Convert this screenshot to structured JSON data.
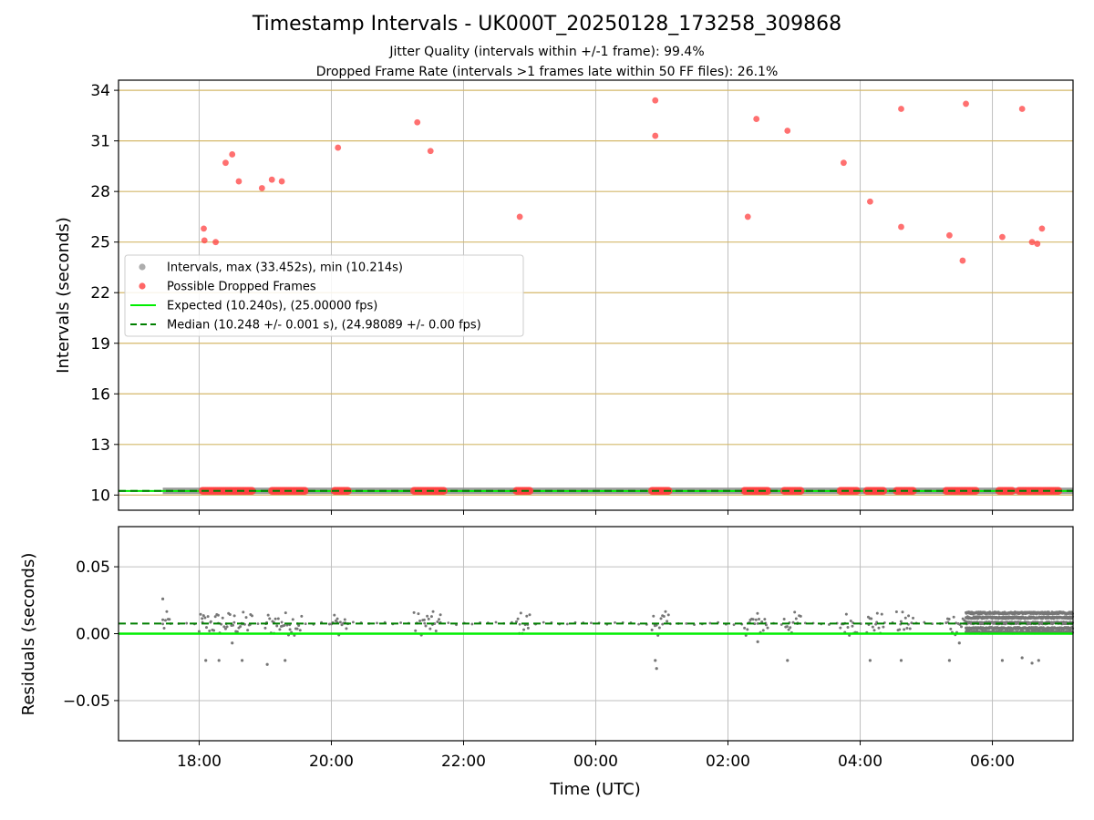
{
  "chart_data": [
    {
      "type": "scatter",
      "title": "Timestamp Intervals - UK000T_20250128_173258_309868",
      "subtitle_lines": [
        "Jitter Quality (intervals within +/-1 frame): 99.4%",
        "Dropped Frame Rate (intervals >1 frames late within 50 FF files): 26.1%"
      ],
      "xlabel": "",
      "ylabel": "Intervals (seconds)",
      "xlim_hours": [
        -7.22,
        7.22
      ],
      "ylim": [
        9.1,
        34.6
      ],
      "yticks": [
        10,
        13,
        16,
        19,
        22,
        25,
        28,
        31,
        34
      ],
      "xtick_hours": [
        -6,
        -4,
        -2,
        0,
        2,
        4,
        6
      ],
      "xtick_labels": [
        "18:00",
        "20:00",
        "22:00",
        "00:00",
        "02:00",
        "04:00",
        "06:00"
      ],
      "grid": true,
      "legend_position": "center-left",
      "legend": [
        {
          "label": "Intervals, max (33.452s), min (10.214s)",
          "kind": "marker",
          "color": "#999999"
        },
        {
          "label": "Possible Dropped Frames",
          "kind": "marker",
          "color": "#ff4040"
        },
        {
          "label": "Expected (10.240s), (25.00000 fps)",
          "kind": "line",
          "color": "#00ee00"
        },
        {
          "label": "Median (10.248 +/- 0.001 s), (24.98089 +/- 0.00 fps)",
          "kind": "dashed",
          "color": "#007f00"
        }
      ],
      "series": [
        {
          "name": "Possible Dropped Frames",
          "color": "#ff4040",
          "points": [
            [
              -5.93,
              25.8
            ],
            [
              -5.92,
              25.1
            ],
            [
              -5.75,
              25.0
            ],
            [
              -5.6,
              29.7
            ],
            [
              -5.5,
              30.2
            ],
            [
              -5.4,
              28.6
            ],
            [
              -5.05,
              28.2
            ],
            [
              -4.9,
              28.7
            ],
            [
              -4.75,
              28.6
            ],
            [
              -3.9,
              30.6
            ],
            [
              -2.7,
              32.1
            ],
            [
              -2.5,
              30.4
            ],
            [
              -1.15,
              26.5
            ],
            [
              0.9,
              33.4
            ],
            [
              0.9,
              31.3
            ],
            [
              2.3,
              26.5
            ],
            [
              2.43,
              32.3
            ],
            [
              2.9,
              31.6
            ],
            [
              3.75,
              29.7
            ],
            [
              4.15,
              27.4
            ],
            [
              4.62,
              32.9
            ],
            [
              4.62,
              25.9
            ],
            [
              5.35,
              25.4
            ],
            [
              5.55,
              23.9
            ],
            [
              5.6,
              33.2
            ],
            [
              6.15,
              25.3
            ],
            [
              6.45,
              32.9
            ],
            [
              6.6,
              25.0
            ],
            [
              6.68,
              24.9
            ],
            [
              6.75,
              25.8
            ]
          ],
          "baseline_clusters": [
            [
              -5.95,
              -5.2
            ],
            [
              -4.9,
              -4.4
            ],
            [
              -3.95,
              -3.75
            ],
            [
              -2.75,
              -2.3
            ],
            [
              -1.2,
              -1.0
            ],
            [
              0.85,
              1.1
            ],
            [
              2.25,
              2.6
            ],
            [
              2.85,
              3.1
            ],
            [
              3.7,
              3.95
            ],
            [
              4.1,
              4.35
            ],
            [
              4.55,
              4.8
            ],
            [
              5.3,
              5.75
            ],
            [
              6.1,
              6.3
            ],
            [
              6.4,
              7.0
            ]
          ]
        },
        {
          "name": "Intervals",
          "color": "#999999",
          "x_range_hours": [
            -6.55,
            7.22
          ],
          "value": 10.248
        }
      ],
      "lines": [
        {
          "name": "Expected",
          "y": 10.24,
          "color": "#00ee00"
        },
        {
          "name": "Median",
          "y": 10.248,
          "color": "#007f00",
          "style": "dashed"
        }
      ],
      "reference_lines_y": [
        10,
        13,
        16,
        19,
        22,
        25,
        28,
        31,
        34
      ],
      "reference_line_color": "#d4b86a"
    },
    {
      "type": "scatter",
      "xlabel": "Time (UTC)",
      "ylabel": "Residuals (seconds)",
      "xlim_hours": [
        -7.22,
        7.22
      ],
      "ylim": [
        -0.08,
        0.08
      ],
      "yticks": [
        0.05,
        0.0,
        -0.05
      ],
      "ytick_labels": [
        "0.05",
        "0.00",
        "−0.05"
      ],
      "xtick_hours": [
        -6,
        -4,
        -2,
        0,
        2,
        4,
        6
      ],
      "xtick_labels": [
        "18:00",
        "20:00",
        "22:00",
        "00:00",
        "02:00",
        "04:00",
        "06:00"
      ],
      "grid": true,
      "series": [
        {
          "name": "Residuals",
          "color": "#777777",
          "outliers": [
            [
              -6.55,
              0.026
            ],
            [
              -5.9,
              -0.02
            ],
            [
              -5.7,
              -0.02
            ],
            [
              -5.5,
              -0.007
            ],
            [
              -5.35,
              -0.02
            ],
            [
              -4.97,
              -0.023
            ],
            [
              -4.7,
              -0.02
            ],
            [
              0.9,
              -0.02
            ],
            [
              0.92,
              -0.026
            ],
            [
              2.45,
              -0.006
            ],
            [
              2.9,
              -0.02
            ],
            [
              4.15,
              -0.02
            ],
            [
              4.62,
              -0.02
            ],
            [
              5.35,
              -0.02
            ],
            [
              5.5,
              -0.007
            ],
            [
              6.15,
              -0.02
            ],
            [
              6.45,
              -0.018
            ],
            [
              6.6,
              -0.022
            ],
            [
              6.7,
              -0.02
            ]
          ],
          "cluster_hours": [
            [
              -6.55,
              -6.45
            ],
            [
              -6.0,
              -5.2
            ],
            [
              -5.0,
              -4.45
            ],
            [
              -4.0,
              -3.75
            ],
            [
              -2.75,
              -2.35
            ],
            [
              -1.2,
              -1.0
            ],
            [
              0.85,
              1.1
            ],
            [
              2.25,
              2.6
            ],
            [
              2.85,
              3.1
            ],
            [
              3.7,
              3.95
            ],
            [
              4.1,
              4.35
            ],
            [
              4.55,
              4.8
            ],
            [
              5.3,
              5.6
            ]
          ],
          "dense_range_hours": [
            5.6,
            7.22
          ]
        }
      ],
      "lines": [
        {
          "name": "Expected",
          "y": 0.0,
          "color": "#00ee00"
        },
        {
          "name": "Median",
          "y": 0.0076,
          "color": "#007f00",
          "style": "dashed"
        }
      ]
    }
  ]
}
